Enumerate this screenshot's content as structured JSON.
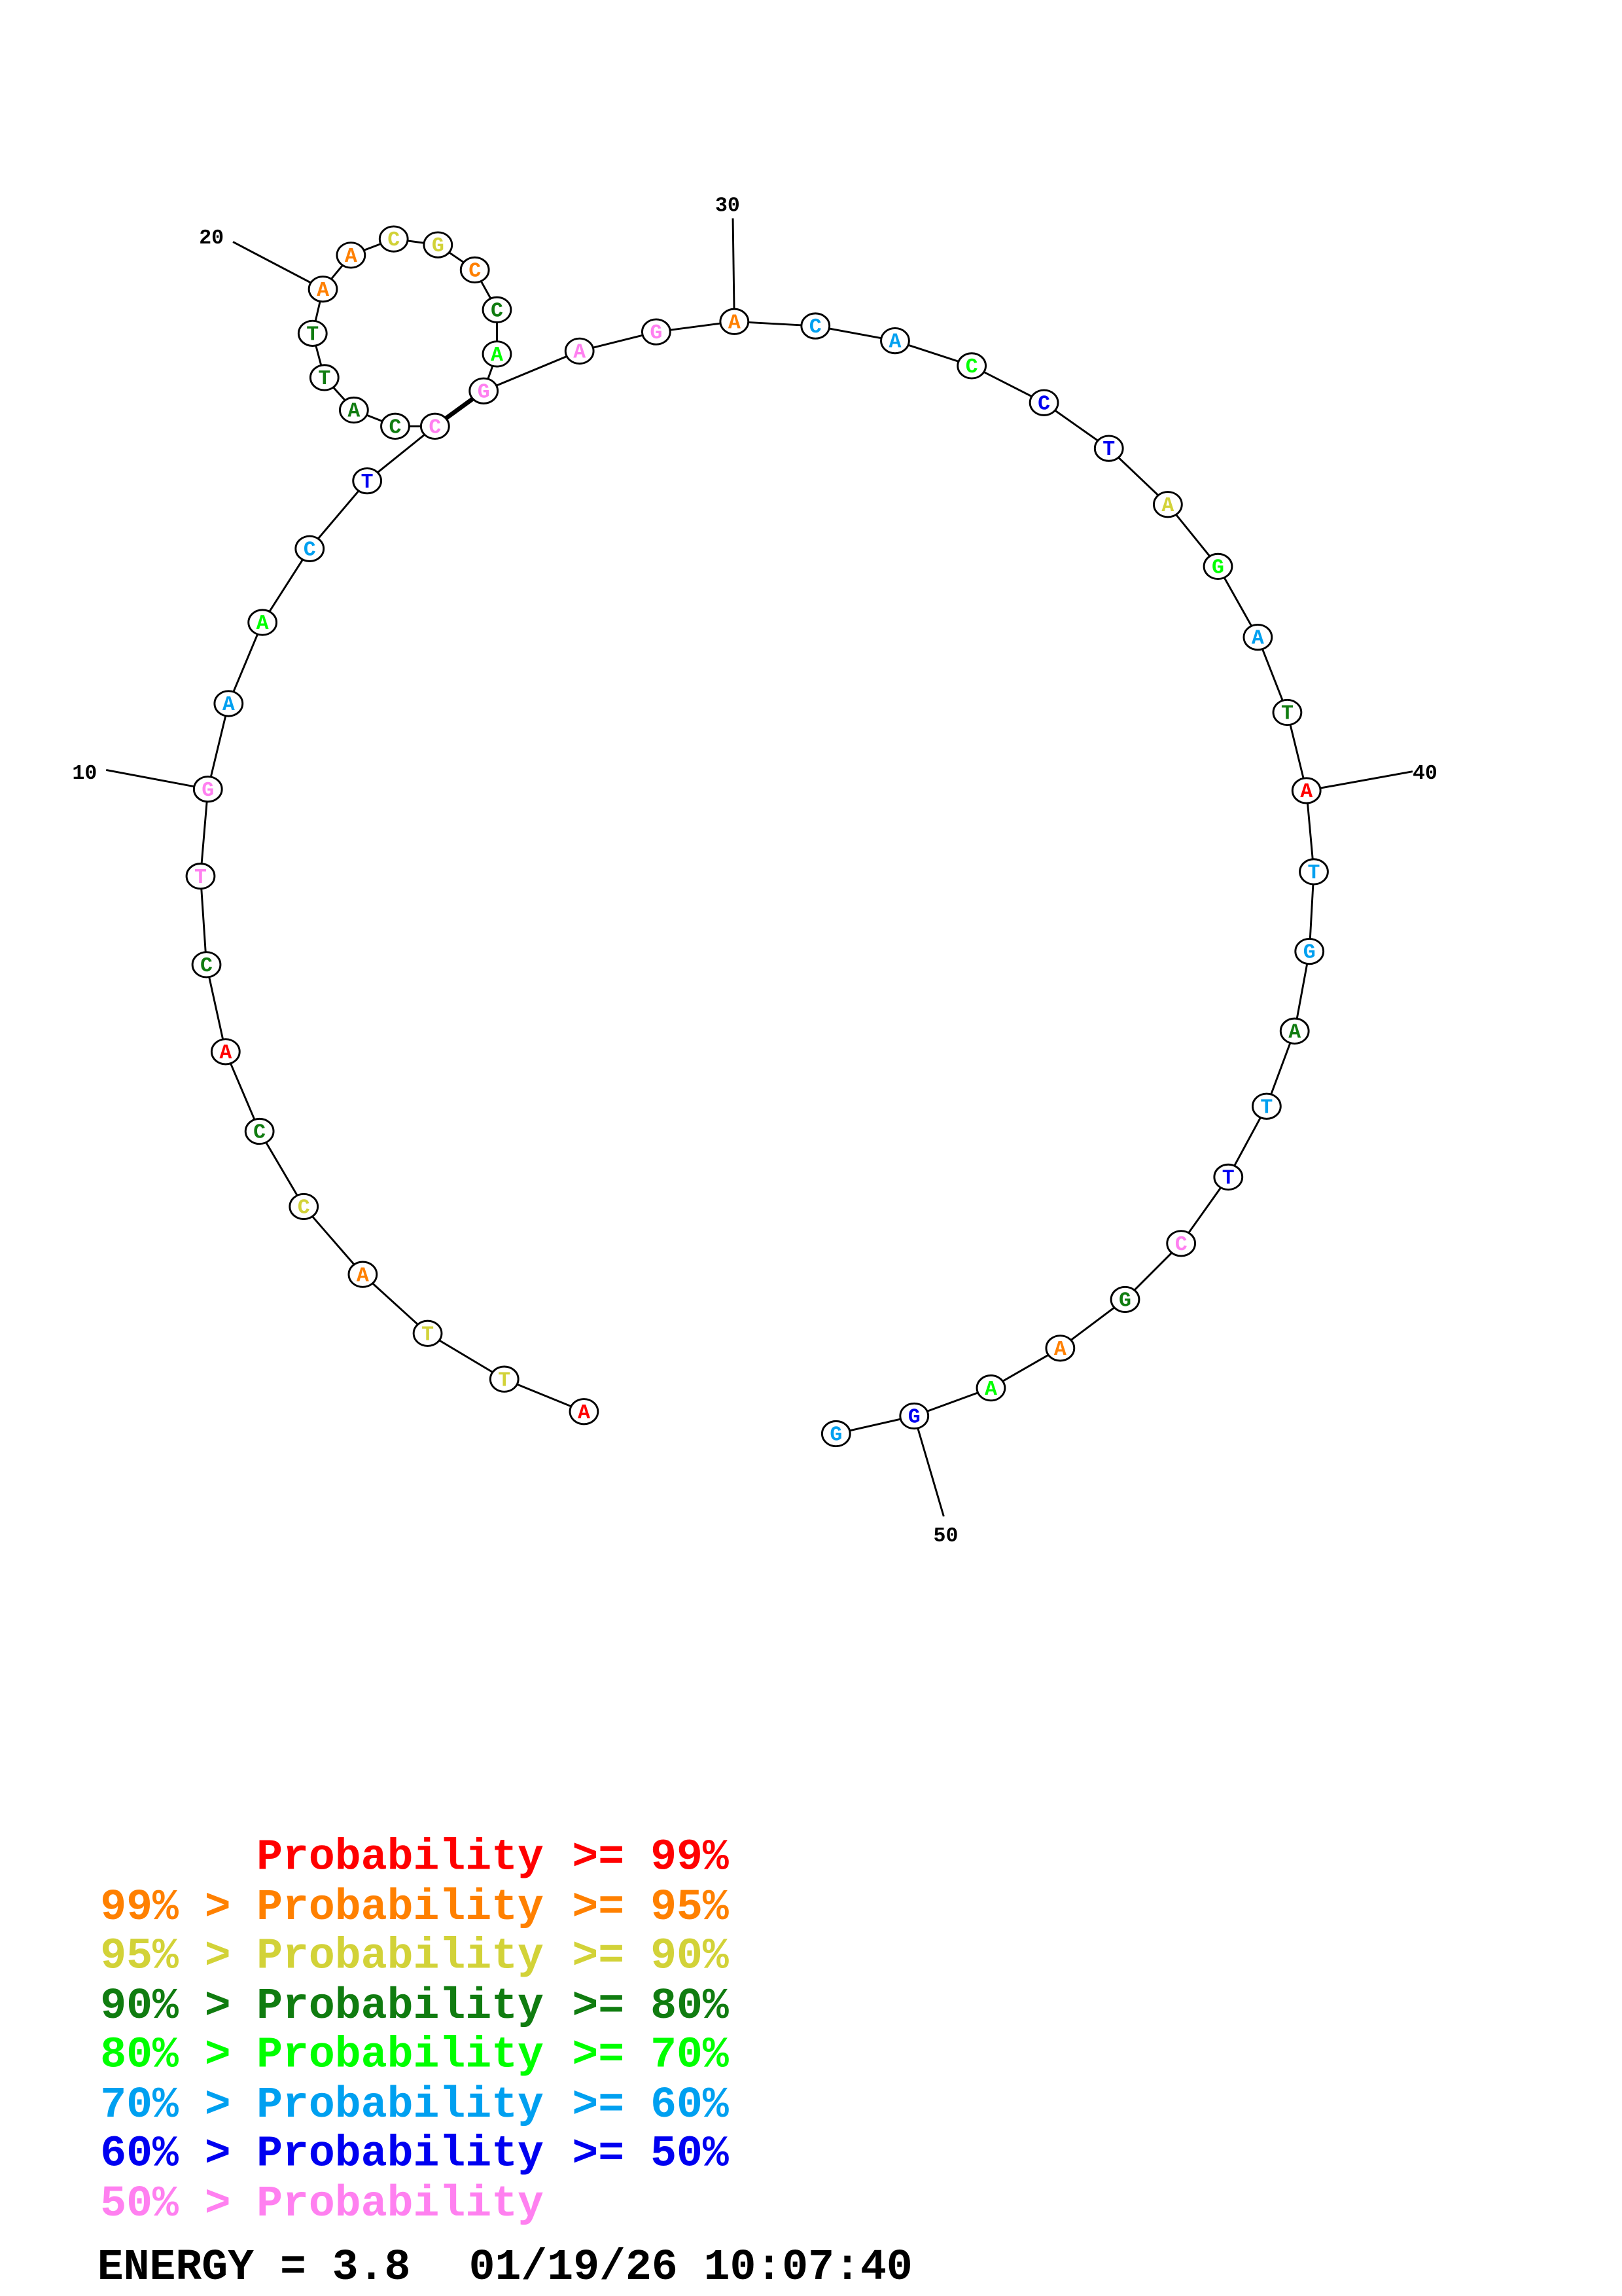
{
  "colors": {
    "red": "#ff0000",
    "orange": "#ff8000",
    "yellow": "#d2d238",
    "darkgreen": "#107c10",
    "green": "#00ff00",
    "cyan": "#00a0f0",
    "blue": "#0000f0",
    "pink": "#ff80f0"
  },
  "structure": {
    "sequence": "ATTACCACTGAACTCCATTAACGCCAGAGACACCTAGATATGATTCGAAGG",
    "probability_class": [
      "red",
      "yellow",
      "yellow",
      "orange",
      "yellow",
      "darkgreen",
      "red",
      "darkgreen",
      "pink",
      "pink",
      "cyan",
      "green",
      "cyan",
      "blue",
      "pink",
      "darkgreen",
      "darkgreen",
      "darkgreen",
      "darkgreen",
      "orange",
      "orange",
      "yellow",
      "yellow",
      "orange",
      "darkgreen",
      "green",
      "pink",
      "pink",
      "pink",
      "orange",
      "cyan",
      "cyan",
      "green",
      "blue",
      "blue",
      "yellow",
      "green",
      "cyan",
      "darkgreen",
      "red",
      "cyan",
      "cyan",
      "darkgreen",
      "cyan",
      "blue",
      "pink",
      "darkgreen",
      "orange",
      "green",
      "blue",
      "cyan"
    ],
    "pairs": [
      [
        15,
        27
      ]
    ],
    "position_labels": [
      "10",
      "20",
      "30",
      "40",
      "50"
    ]
  },
  "legend": [
    {
      "prefix": "",
      "middle": "Probability",
      "suffix": ">= 99%",
      "color": "red"
    },
    {
      "prefix": "99% >",
      "middle": "Probability",
      "suffix": ">= 95%",
      "color": "orange"
    },
    {
      "prefix": "95% >",
      "middle": "Probability",
      "suffix": ">= 90%",
      "color": "yellow"
    },
    {
      "prefix": "90% >",
      "middle": "Probability",
      "suffix": ">= 80%",
      "color": "darkgreen"
    },
    {
      "prefix": "80% >",
      "middle": "Probability",
      "suffix": ">= 70%",
      "color": "green"
    },
    {
      "prefix": "70% >",
      "middle": "Probability",
      "suffix": ">= 60%",
      "color": "cyan"
    },
    {
      "prefix": "60% >",
      "middle": "Probability",
      "suffix": ">= 50%",
      "color": "blue"
    },
    {
      "prefix": "50% >",
      "middle": "Probability",
      "suffix": "",
      "color": "pink"
    }
  ],
  "footer": {
    "energy": "ENERGY = 3.8",
    "timestamp": "01/19/26 10:07:40"
  }
}
